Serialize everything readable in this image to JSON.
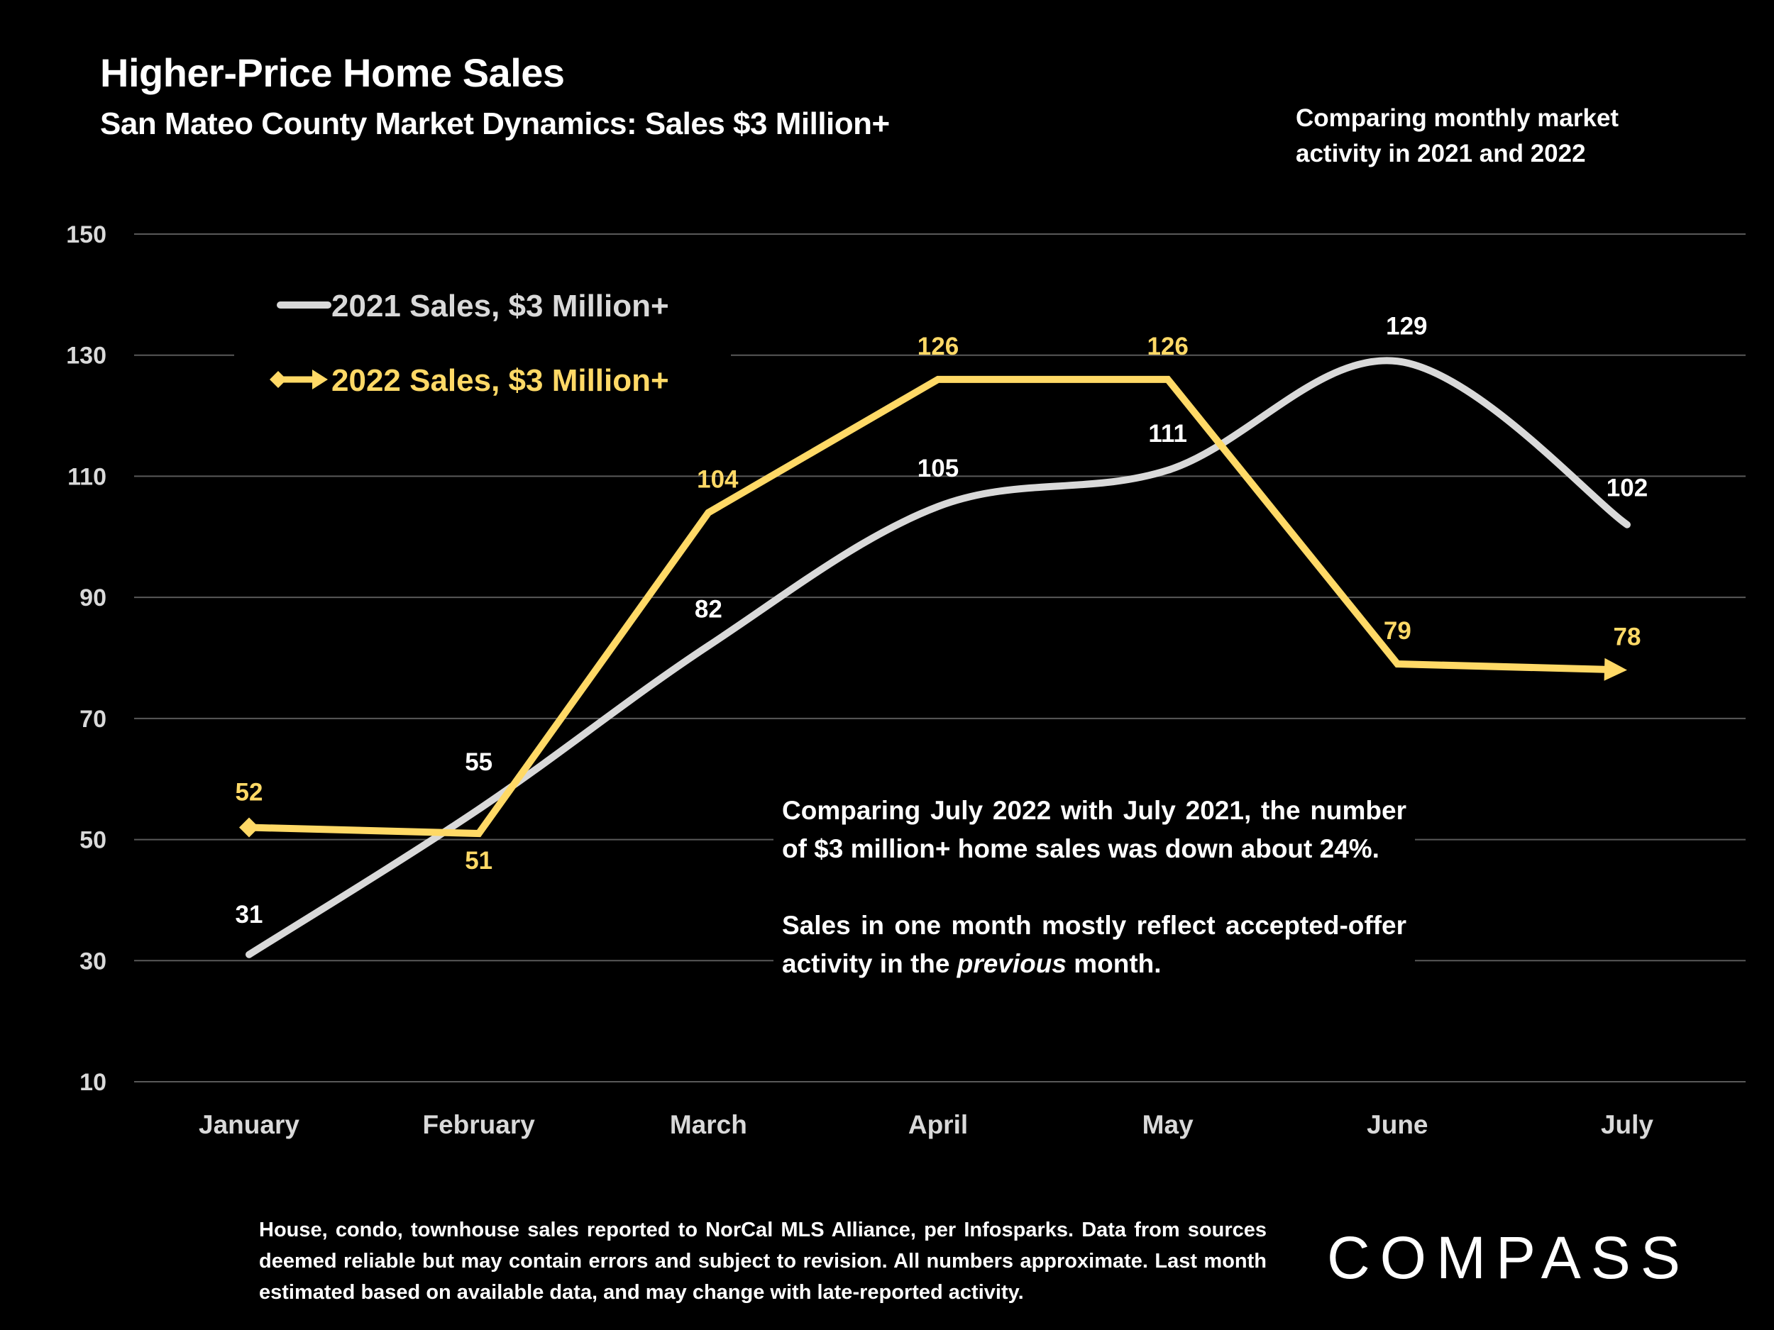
{
  "header": {
    "title": "Higher-Price Home Sales",
    "subtitle": "San Mateo County Market Dynamics: Sales $3 Million+",
    "note": "Comparing monthly market activity in 2021 and 2022"
  },
  "callout": {
    "paragraph1": "Comparing July 2022 with July 2021, the number of $3 million+ home sales was down about 24%.",
    "paragraph2_before": "Sales in one month mostly reflect accepted-offer activity in the ",
    "paragraph2_emphasis": "previous",
    "paragraph2_after": " month."
  },
  "footnote": "House, condo, townhouse sales reported to NorCal MLS Alliance, per Infosparks. Data from sources deemed reliable but may contain errors and subject to revision. All numbers approximate. Last month estimated based on available data, and may change with late-reported activity.",
  "logo": {
    "text": "COMPASS"
  },
  "colors": {
    "background": "#000000",
    "series_2021": "#d9d9d9",
    "series_2022": "#ffd966",
    "gridline": "#595959"
  },
  "chart_data": {
    "type": "line",
    "title": "Higher-Price Home Sales",
    "subtitle": "San Mateo County Market Dynamics: Sales $3 Million+",
    "xlabel": "",
    "ylabel": "",
    "categories": [
      "January",
      "February",
      "March",
      "April",
      "May",
      "June",
      "July"
    ],
    "ylim": [
      10,
      150
    ],
    "yticks": [
      10,
      30,
      50,
      70,
      90,
      110,
      130,
      150
    ],
    "grid": true,
    "legend_position": "top-left",
    "series": [
      {
        "name": "2021 Sales, $3 Million+",
        "color": "#d9d9d9",
        "smooth": true,
        "values": [
          31,
          55,
          82,
          105,
          111,
          129,
          102
        ]
      },
      {
        "name": "2022 Sales, $3 Million+",
        "color": "#ffd966",
        "smooth": false,
        "marker_start": "diamond",
        "marker_end": "arrow",
        "values": [
          52,
          51,
          104,
          126,
          126,
          79,
          78
        ]
      }
    ]
  }
}
